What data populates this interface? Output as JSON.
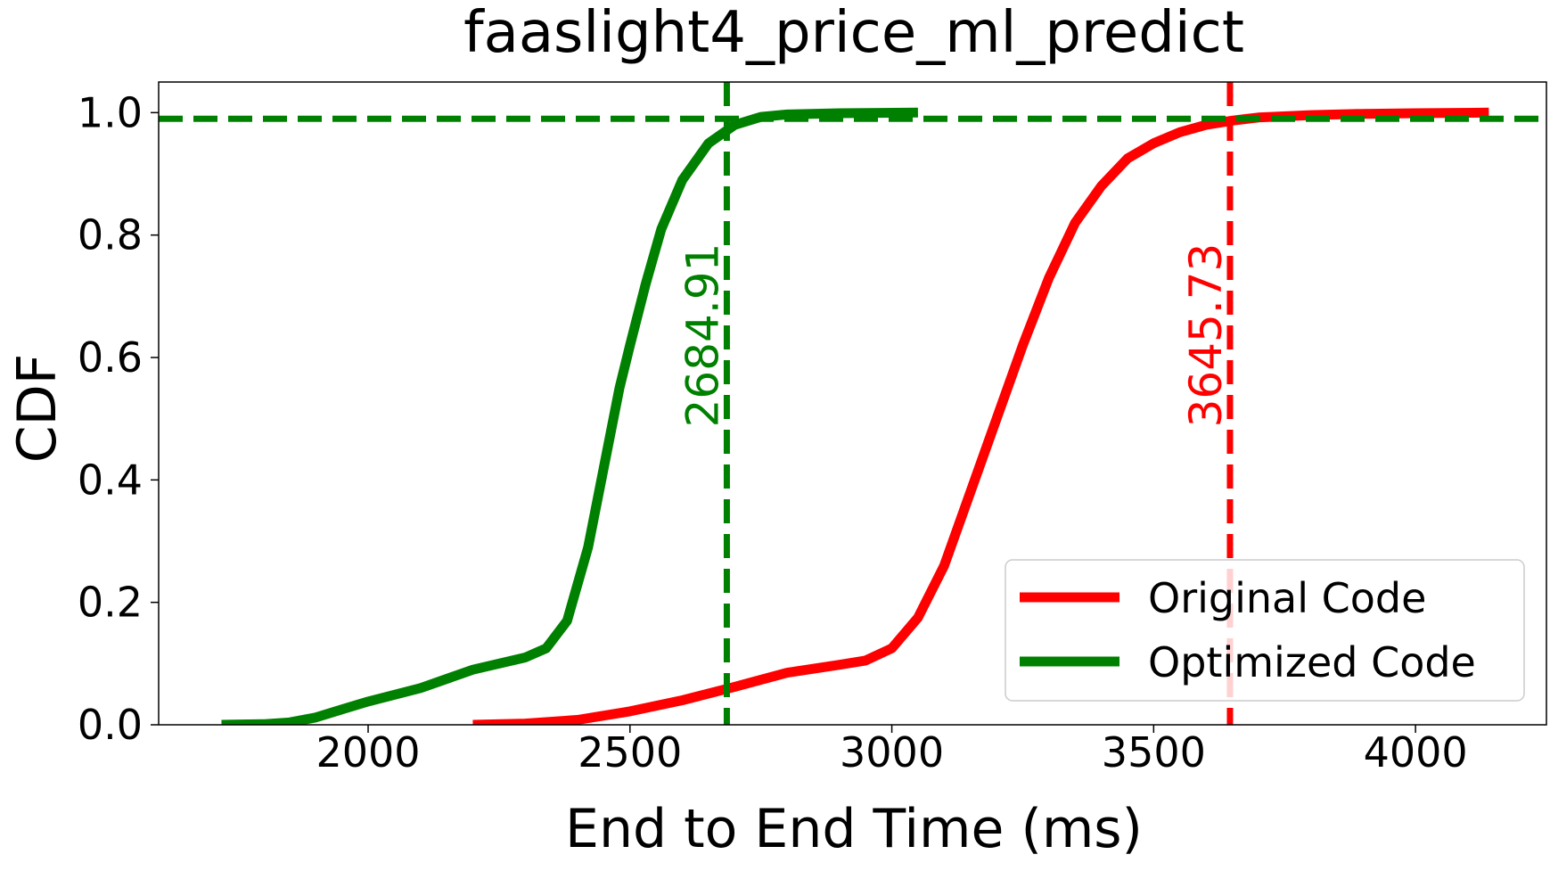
{
  "chart_data": {
    "type": "line",
    "title": "faaslight4_price_ml_predict",
    "xlabel": "End to End Time (ms)",
    "ylabel": "CDF",
    "xlim": [
      1600,
      4250
    ],
    "ylim": [
      0.0,
      1.05
    ],
    "xticks": [
      2000,
      2500,
      3000,
      3500,
      4000
    ],
    "yticks": [
      0.0,
      0.2,
      0.4,
      0.6,
      0.8,
      1.0
    ],
    "ytick_labels": [
      "0.0",
      "0.2",
      "0.4",
      "0.6",
      "0.8",
      "1.0"
    ],
    "grid": false,
    "legend_position": "lower-right",
    "series": [
      {
        "name": "Original Code",
        "color": "#ff0000",
        "x": [
          2200,
          2300,
          2400,
          2500,
          2600,
          2700,
          2800,
          2900,
          2950,
          3000,
          3050,
          3100,
          3150,
          3200,
          3250,
          3300,
          3350,
          3400,
          3450,
          3500,
          3550,
          3600,
          3650,
          3700,
          3800,
          3900,
          4000,
          4140
        ],
        "y": [
          0.0,
          0.002,
          0.008,
          0.022,
          0.04,
          0.062,
          0.085,
          0.098,
          0.105,
          0.125,
          0.175,
          0.26,
          0.38,
          0.5,
          0.62,
          0.73,
          0.82,
          0.88,
          0.925,
          0.95,
          0.968,
          0.98,
          0.987,
          0.992,
          0.996,
          0.998,
          0.999,
          1.0
        ]
      },
      {
        "name": "Optimized Code",
        "color": "#008000",
        "x": [
          1720,
          1800,
          1850,
          1900,
          1950,
          2000,
          2100,
          2200,
          2300,
          2340,
          2380,
          2420,
          2450,
          2480,
          2500,
          2530,
          2560,
          2600,
          2650,
          2700,
          2750,
          2800,
          2900,
          3050
        ],
        "y": [
          0.0,
          0.001,
          0.004,
          0.012,
          0.025,
          0.038,
          0.06,
          0.09,
          0.11,
          0.125,
          0.17,
          0.29,
          0.42,
          0.55,
          0.62,
          0.72,
          0.81,
          0.89,
          0.95,
          0.98,
          0.993,
          0.997,
          0.999,
          1.0
        ]
      }
    ],
    "annotations": [
      {
        "label": "2684.91",
        "x": 2684.91,
        "color": "#008000"
      },
      {
        "label": "3645.73",
        "x": 3645.73,
        "color": "#ff0000"
      }
    ],
    "hline": {
      "y": 0.99,
      "color": "#008000"
    }
  }
}
